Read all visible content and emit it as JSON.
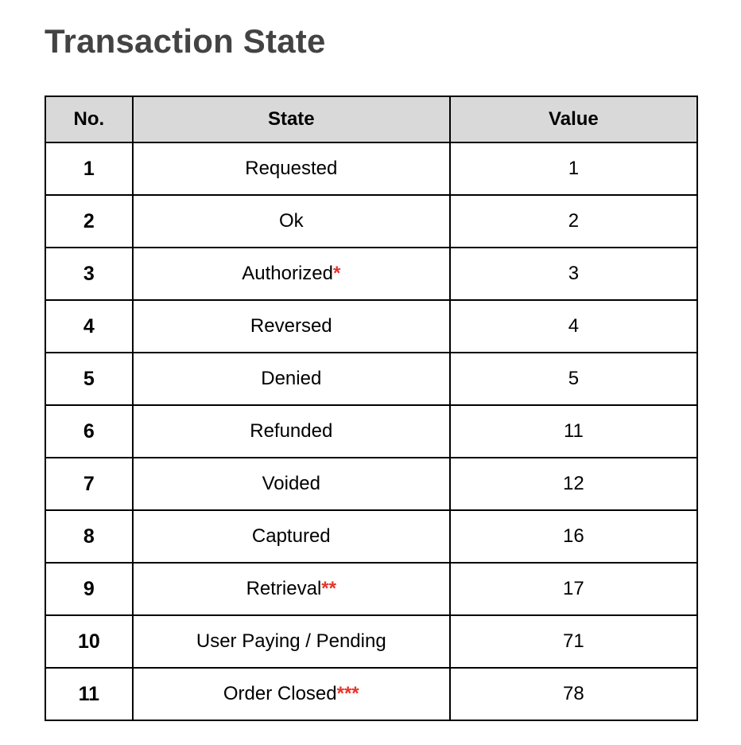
{
  "title": "Transaction State",
  "accent_color": "#e8332a",
  "table": {
    "headers": {
      "no": "No.",
      "state": "State",
      "value": "Value"
    },
    "rows": [
      {
        "no": "1",
        "state": "Requested",
        "mark": "",
        "value": "1"
      },
      {
        "no": "2",
        "state": "Ok",
        "mark": "",
        "value": "2"
      },
      {
        "no": "3",
        "state": "Authorized",
        "mark": "*",
        "value": "3"
      },
      {
        "no": "4",
        "state": "Reversed",
        "mark": "",
        "value": "4"
      },
      {
        "no": "5",
        "state": "Denied",
        "mark": "",
        "value": "5"
      },
      {
        "no": "6",
        "state": "Refunded",
        "mark": "",
        "value": "11"
      },
      {
        "no": "7",
        "state": "Voided",
        "mark": "",
        "value": "12"
      },
      {
        "no": "8",
        "state": "Captured",
        "mark": "",
        "value": "16"
      },
      {
        "no": "9",
        "state": "Retrieval",
        "mark": "**",
        "value": "17"
      },
      {
        "no": "10",
        "state": "User Paying / Pending",
        "mark": "",
        "value": "71"
      },
      {
        "no": "11",
        "state": "Order Closed",
        "mark": "***",
        "value": "78"
      }
    ]
  }
}
